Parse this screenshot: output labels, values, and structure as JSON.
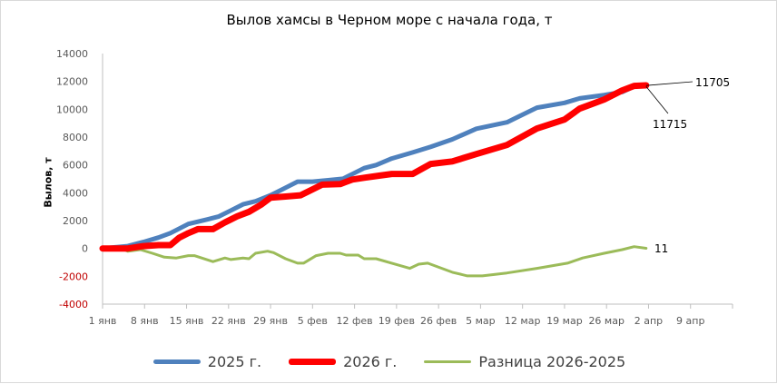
{
  "chart_data": {
    "type": "line",
    "title": "Вылов хамсы в Черном море с начала года, т",
    "xlabel": "",
    "ylabel": "Вылов, т",
    "ylim": [
      -4000,
      14000
    ],
    "yticks": [
      14000,
      12000,
      10000,
      8000,
      6000,
      4000,
      2000,
      0,
      -2000,
      -4000
    ],
    "xlim_days": [
      0,
      105
    ],
    "x_unit": "days since 1 янв",
    "xticks": [
      {
        "day": 0,
        "label": "1 янв"
      },
      {
        "day": 7,
        "label": "8 янв"
      },
      {
        "day": 14,
        "label": "15 янв"
      },
      {
        "day": 21,
        "label": "22 янв"
      },
      {
        "day": 28,
        "label": "29 янв"
      },
      {
        "day": 35,
        "label": "5 фев"
      },
      {
        "day": 42,
        "label": "12 фев"
      },
      {
        "day": 49,
        "label": "19 фев"
      },
      {
        "day": 56,
        "label": "26 фев"
      },
      {
        "day": 63,
        "label": "5 мар"
      },
      {
        "day": 70,
        "label": "12 мар"
      },
      {
        "day": 77,
        "label": "19 мар"
      },
      {
        "day": 84,
        "label": "26 мар"
      },
      {
        "day": 91,
        "label": "2 апр"
      },
      {
        "day": 98,
        "label": "9 апр"
      }
    ],
    "legend_position": "bottom",
    "series": [
      {
        "name": "2025 г.",
        "color": "#4f81bd",
        "points": [
          [
            0,
            0
          ],
          [
            4.2,
            170
          ],
          [
            6.8,
            460
          ],
          [
            9.3,
            780
          ],
          [
            11.3,
            1100
          ],
          [
            14.3,
            1760
          ],
          [
            17.4,
            2080
          ],
          [
            19.4,
            2300
          ],
          [
            21.4,
            2730
          ],
          [
            23.4,
            3170
          ],
          [
            25.5,
            3390
          ],
          [
            28,
            3820
          ],
          [
            30.5,
            4360
          ],
          [
            32.5,
            4800
          ],
          [
            35,
            4800
          ],
          [
            37.6,
            4900
          ],
          [
            40.1,
            5010
          ],
          [
            41.6,
            5340
          ],
          [
            43.6,
            5770
          ],
          [
            45.6,
            5990
          ],
          [
            48.2,
            6460
          ],
          [
            51.7,
            6900
          ],
          [
            54.7,
            7300
          ],
          [
            58.3,
            7840
          ],
          [
            62.3,
            8600
          ],
          [
            67.4,
            9060
          ],
          [
            72.4,
            10110
          ],
          [
            77,
            10460
          ],
          [
            79.5,
            10780
          ],
          [
            83.6,
            11020
          ],
          [
            86.6,
            11240
          ],
          [
            88.6,
            11640
          ],
          [
            90.6,
            11705
          ]
        ]
      },
      {
        "name": "2026 г.",
        "color": "#ff0000",
        "points": [
          [
            0,
            0
          ],
          [
            4.2,
            0
          ],
          [
            6.8,
            170
          ],
          [
            9.3,
            240
          ],
          [
            11.3,
            240
          ],
          [
            12.8,
            780
          ],
          [
            14.3,
            1100
          ],
          [
            15.9,
            1390
          ],
          [
            18.4,
            1390
          ],
          [
            20.4,
            1870
          ],
          [
            22.4,
            2300
          ],
          [
            24.4,
            2630
          ],
          [
            26.5,
            3170
          ],
          [
            28,
            3650
          ],
          [
            30.5,
            3730
          ],
          [
            33,
            3820
          ],
          [
            34.5,
            4140
          ],
          [
            36.6,
            4580
          ],
          [
            39.6,
            4620
          ],
          [
            41.6,
            4950
          ],
          [
            43.6,
            5080
          ],
          [
            46.1,
            5230
          ],
          [
            48.2,
            5350
          ],
          [
            51.7,
            5350
          ],
          [
            54.7,
            6070
          ],
          [
            58.3,
            6250
          ],
          [
            62.3,
            6780
          ],
          [
            67.4,
            7430
          ],
          [
            72.4,
            8610
          ],
          [
            77,
            9260
          ],
          [
            79.5,
            10040
          ],
          [
            83.6,
            10700
          ],
          [
            86.6,
            11350
          ],
          [
            88.6,
            11680
          ],
          [
            90.6,
            11715
          ]
        ]
      },
      {
        "name": "Разница 2026-2025",
        "color": "#9bbb59",
        "points": [
          [
            0,
            0
          ],
          [
            3.2,
            0
          ],
          [
            4.2,
            -200
          ],
          [
            6.3,
            -90
          ],
          [
            8.3,
            -350
          ],
          [
            10.3,
            -630
          ],
          [
            12.3,
            -690
          ],
          [
            14.3,
            -520
          ],
          [
            15.3,
            -520
          ],
          [
            18.4,
            -950
          ],
          [
            20.4,
            -690
          ],
          [
            21.4,
            -800
          ],
          [
            23.4,
            -690
          ],
          [
            24.4,
            -740
          ],
          [
            25.5,
            -350
          ],
          [
            27.5,
            -200
          ],
          [
            28.5,
            -300
          ],
          [
            30.5,
            -740
          ],
          [
            32.5,
            -1060
          ],
          [
            33.5,
            -1060
          ],
          [
            35.6,
            -520
          ],
          [
            37.6,
            -350
          ],
          [
            39.6,
            -350
          ],
          [
            40.6,
            -480
          ],
          [
            42.6,
            -480
          ],
          [
            43.6,
            -740
          ],
          [
            45.6,
            -740
          ],
          [
            48.2,
            -1060
          ],
          [
            51.2,
            -1430
          ],
          [
            52.7,
            -1130
          ],
          [
            54.2,
            -1060
          ],
          [
            58.3,
            -1710
          ],
          [
            60.8,
            -1970
          ],
          [
            63.3,
            -1970
          ],
          [
            67.4,
            -1760
          ],
          [
            72.4,
            -1430
          ],
          [
            77.5,
            -1060
          ],
          [
            80,
            -690
          ],
          [
            83.6,
            -350
          ],
          [
            86.6,
            -90
          ],
          [
            88.6,
            130
          ],
          [
            90.6,
            11
          ]
        ]
      }
    ],
    "annotations": [
      {
        "text": "11705",
        "series": "2025 г.",
        "day": 90.6,
        "value": 11705
      },
      {
        "text": "11715",
        "series": "2026 г.",
        "day": 90.6,
        "value": 11715
      },
      {
        "text": "11",
        "series": "Разница 2026-2025",
        "day": 90.6,
        "value": 11
      }
    ]
  }
}
